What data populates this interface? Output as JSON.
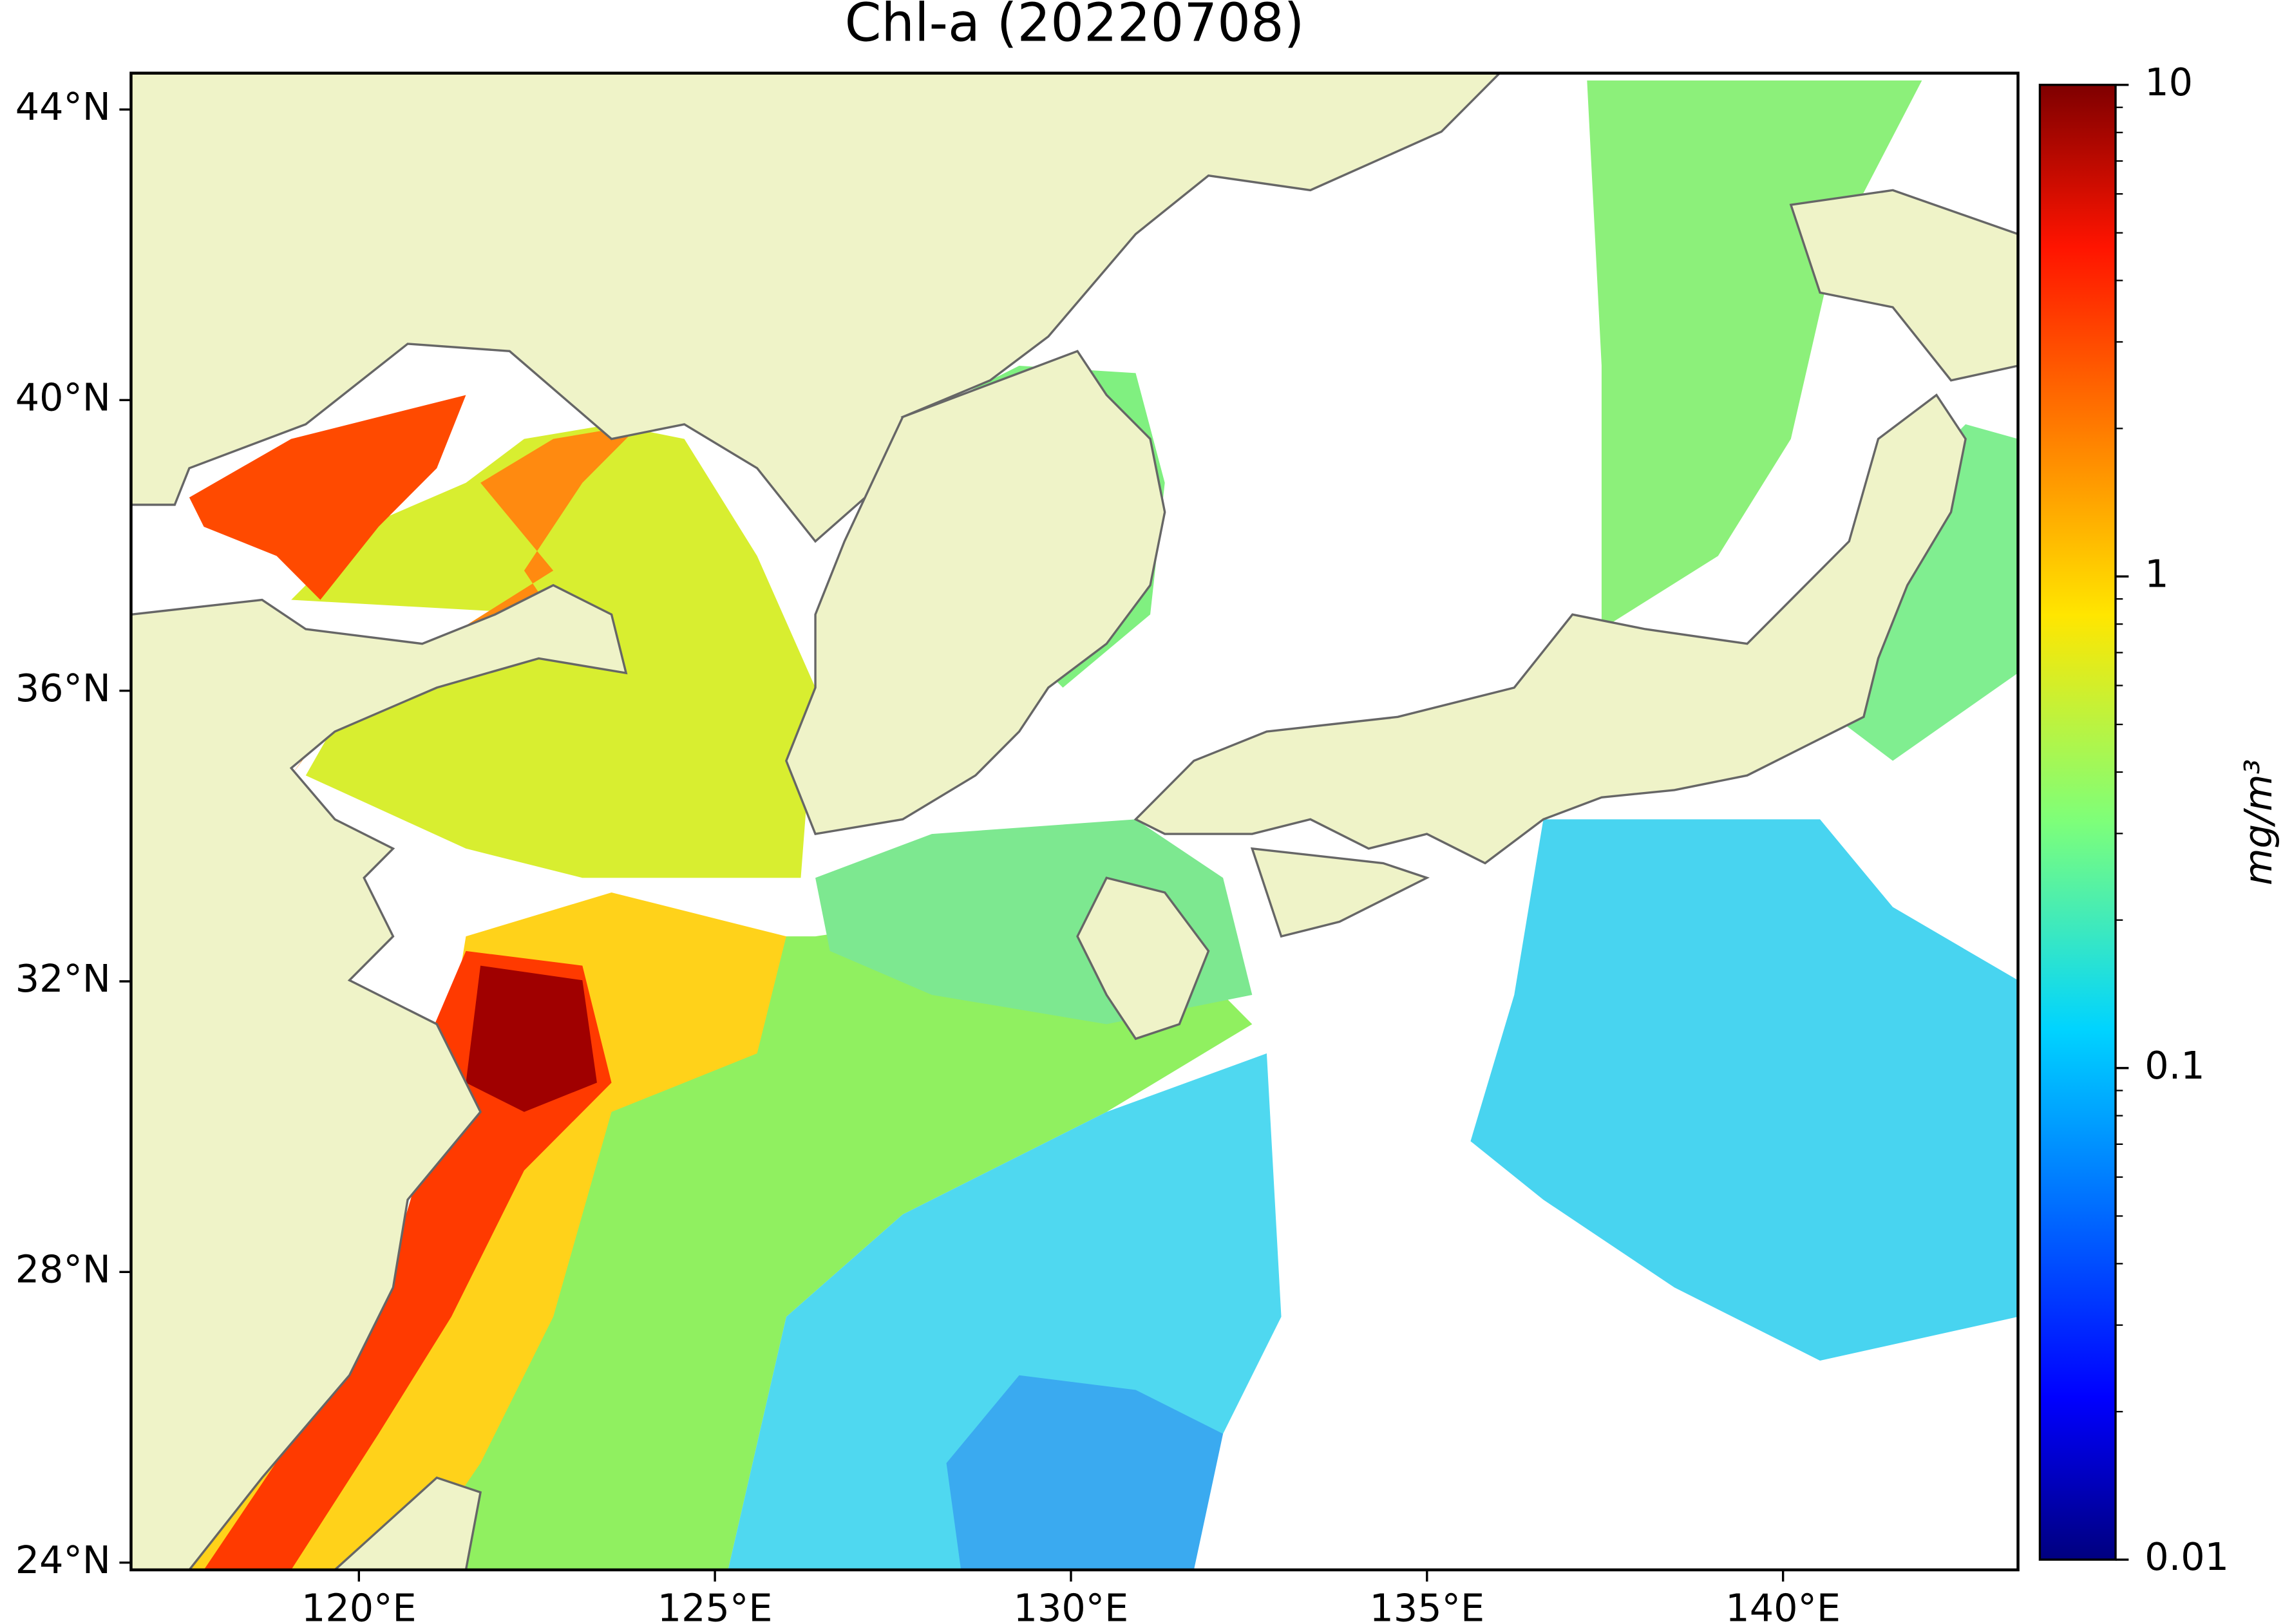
{
  "chart_data": {
    "type": "map",
    "title": "Chl-a (20220708)",
    "xlim": [
      116.8,
      143.3
    ],
    "ylim": [
      23.9,
      44.5
    ],
    "xticks": [
      {
        "value": 120,
        "label": "120°E"
      },
      {
        "value": 125,
        "label": "125°E"
      },
      {
        "value": 130,
        "label": "130°E"
      },
      {
        "value": 135,
        "label": "135°E"
      },
      {
        "value": 140,
        "label": "140°E"
      }
    ],
    "yticks": [
      {
        "value": 24,
        "label": "24°N"
      },
      {
        "value": 28,
        "label": "28°N"
      },
      {
        "value": 32,
        "label": "32°N"
      },
      {
        "value": 36,
        "label": "36°N"
      },
      {
        "value": 40,
        "label": "40°N"
      },
      {
        "value": 44,
        "label": "44°N"
      }
    ],
    "colorbar": {
      "label": "mg/m³",
      "scale": "log",
      "lim": [
        0.01,
        10
      ],
      "ticks": [
        0.01,
        0.1,
        1,
        10
      ],
      "colormap": "jet"
    }
  }
}
